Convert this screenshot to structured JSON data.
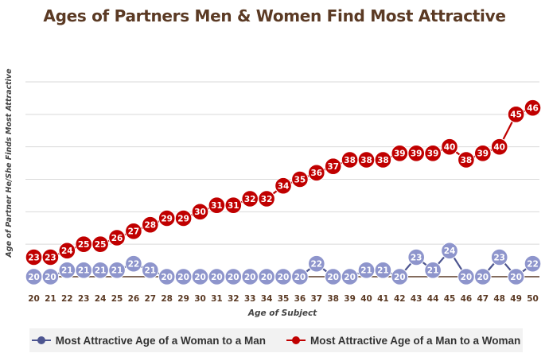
{
  "chart_data": {
    "type": "line",
    "title": "Ages of Partners Men & Women Find Most Attractive",
    "xlabel": "Age of Subject",
    "ylabel": "Age of Partner He/She Finds Most Attractive",
    "x": [
      20,
      21,
      22,
      23,
      24,
      25,
      26,
      27,
      28,
      29,
      30,
      31,
      32,
      33,
      34,
      35,
      36,
      37,
      38,
      39,
      40,
      41,
      42,
      43,
      44,
      45,
      46,
      47,
      48,
      49,
      50
    ],
    "ylim": [
      20,
      50
    ],
    "grid": true,
    "legend_position": "bottom",
    "series": [
      {
        "name": "Most Attractive Age of a Woman to a Man",
        "color": "#4d5590",
        "marker_color": "#8e95cc",
        "values": [
          20,
          20,
          21,
          21,
          21,
          21,
          22,
          21,
          20,
          20,
          20,
          20,
          20,
          20,
          20,
          20,
          20,
          22,
          20,
          20,
          21,
          21,
          20,
          23,
          21,
          24,
          20,
          20,
          23,
          20,
          22
        ]
      },
      {
        "name": "Most Attractive Age of a Man to a Woman",
        "color": "#c00000",
        "marker_color": "#c00000",
        "values": [
          23,
          23,
          24,
          25,
          25,
          26,
          27,
          28,
          29,
          29,
          30,
          31,
          31,
          32,
          32,
          34,
          35,
          36,
          37,
          38,
          38,
          38,
          39,
          39,
          39,
          40,
          38,
          39,
          40,
          45,
          46
        ]
      }
    ]
  }
}
